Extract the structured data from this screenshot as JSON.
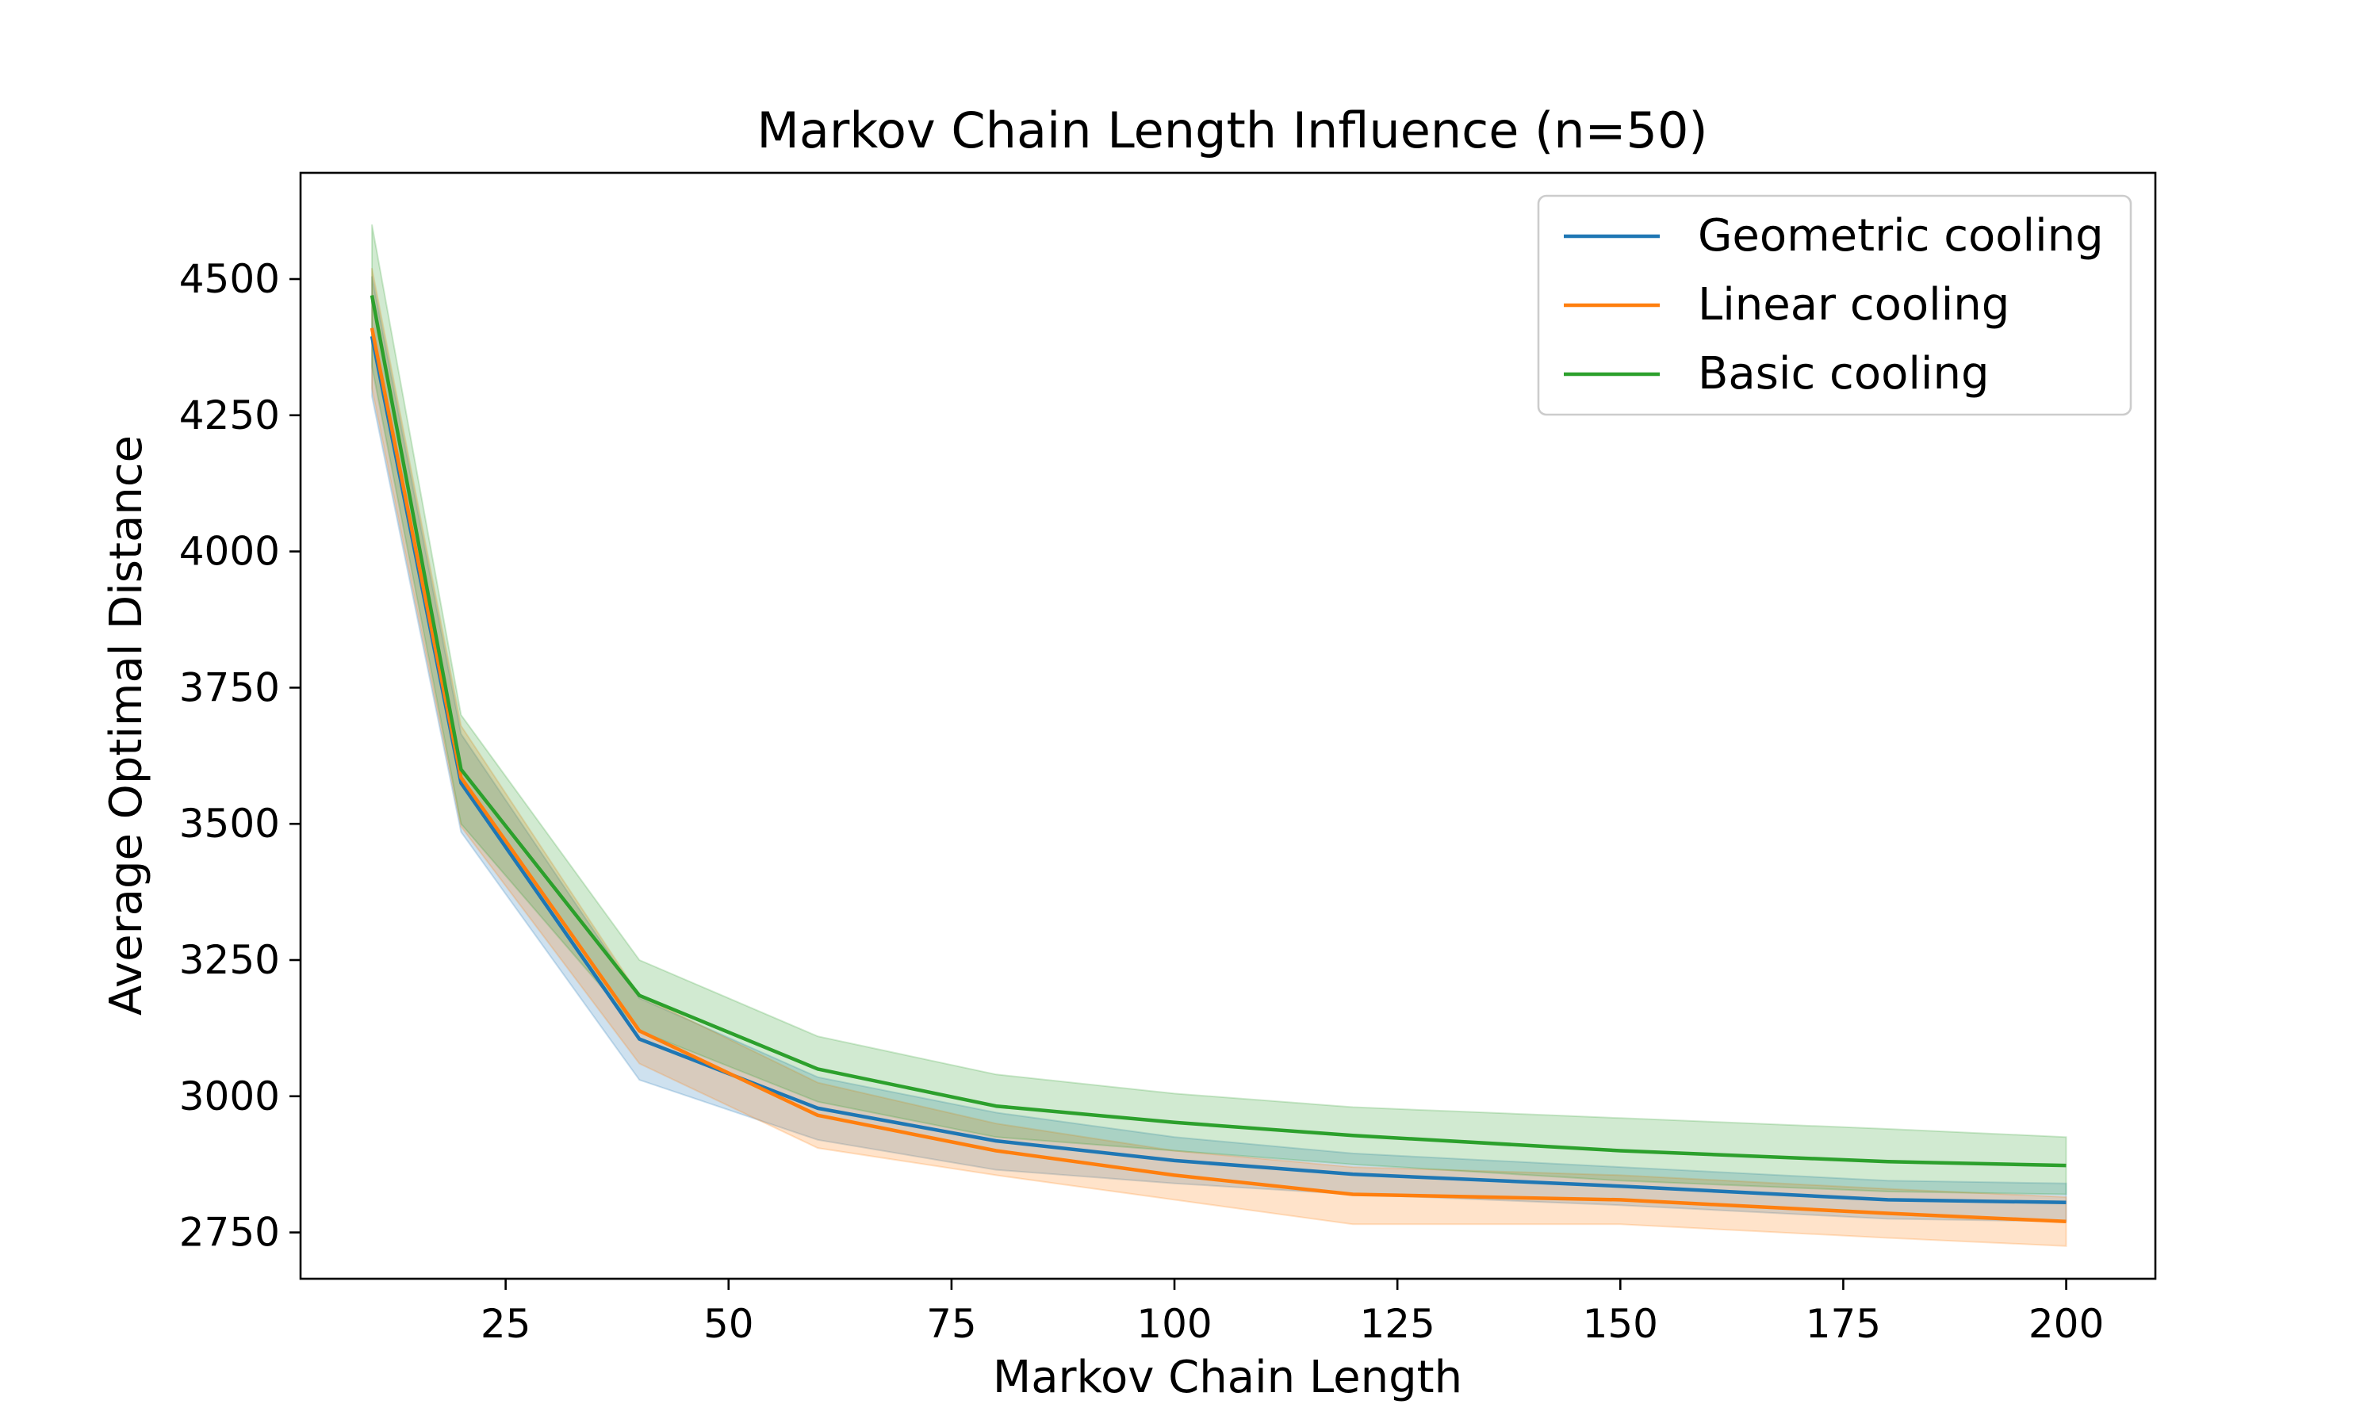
{
  "chart_data": {
    "type": "line",
    "title": "Markov Chain Length Influence (n=50)",
    "xlabel": "Markov Chain Length",
    "ylabel": "Average Optimal Distance",
    "xlim": [
      2,
      210
    ],
    "ylim": [
      2665,
      4695
    ],
    "x_ticks": [
      25,
      50,
      75,
      100,
      125,
      150,
      175,
      200
    ],
    "y_ticks": [
      2750,
      3000,
      3250,
      3500,
      3750,
      4000,
      4250,
      4500
    ],
    "grid": false,
    "legend_position": "top-right",
    "x": [
      10,
      20,
      40,
      60,
      80,
      100,
      120,
      150,
      180,
      200
    ],
    "series": [
      {
        "name": "Geometric cooling",
        "color": "#1f77b4",
        "values": [
          4395,
          3575,
          3105,
          2978,
          2918,
          2882,
          2857,
          2835,
          2810,
          2805
        ],
        "lower": [
          4285,
          3485,
          3030,
          2920,
          2865,
          2840,
          2820,
          2800,
          2775,
          2770
        ],
        "upper": [
          4505,
          3665,
          3180,
          3035,
          2970,
          2925,
          2895,
          2870,
          2845,
          2840
        ]
      },
      {
        "name": "Linear cooling",
        "color": "#ff7f0e",
        "values": [
          4410,
          3585,
          3120,
          2965,
          2900,
          2855,
          2820,
          2810,
          2785,
          2770
        ],
        "lower": [
          4300,
          3495,
          3060,
          2905,
          2855,
          2810,
          2765,
          2765,
          2740,
          2725
        ],
        "upper": [
          4520,
          3680,
          3185,
          3025,
          2950,
          2900,
          2870,
          2855,
          2830,
          2815
        ]
      },
      {
        "name": "Basic cooling",
        "color": "#2ca02c",
        "values": [
          4470,
          3600,
          3185,
          3050,
          2982,
          2952,
          2928,
          2900,
          2880,
          2873
        ],
        "lower": [
          4340,
          3500,
          3120,
          2990,
          2925,
          2900,
          2875,
          2845,
          2825,
          2820
        ],
        "upper": [
          4600,
          3700,
          3250,
          3110,
          3040,
          3005,
          2980,
          2960,
          2940,
          2925
        ]
      }
    ]
  }
}
